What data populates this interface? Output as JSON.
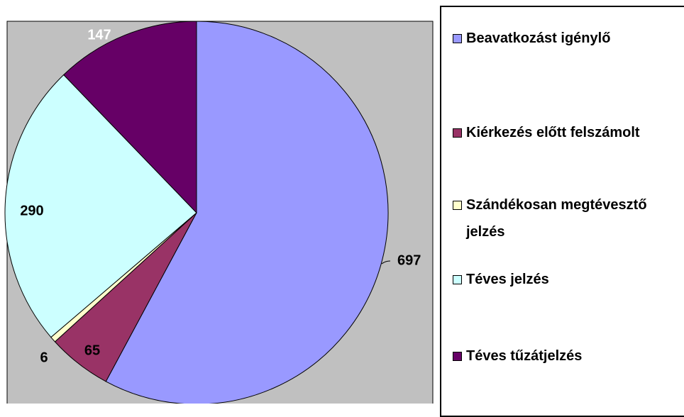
{
  "chart_data": {
    "type": "pie",
    "categories": [
      "Beavatkozást igénylő",
      "Kiérkezés előtt felszámolt",
      "Szándékosan megtévesztő jelzés",
      "Téves jelzés",
      "Téves tűzátjelzés"
    ],
    "values": [
      697,
      65,
      6,
      290,
      147
    ],
    "colors": [
      "#9999ff",
      "#993366",
      "#ffffcc",
      "#ccffff",
      "#660066"
    ],
    "legend": "right"
  }
}
